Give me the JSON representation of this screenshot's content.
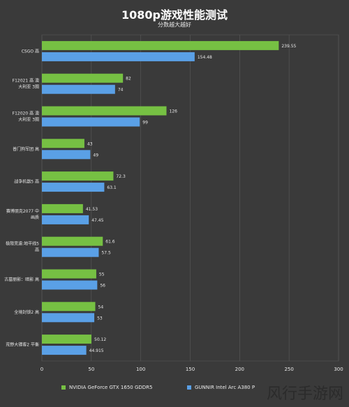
{
  "header": {
    "title": "1080p游戏性能测试",
    "subtitle": "分数越大越好"
  },
  "colors": {
    "background": "#3a3a3a",
    "nvidia": "#76c043",
    "gunnir": "#5aa0e6",
    "grid": "#5a5a5a",
    "text": "#e8e8e8"
  },
  "legend": {
    "nvidia_label": "NVIDIA GeForce GTX 1650  GDDR5",
    "gunnir_label": "GUNNIR Intel Arc A380 P"
  },
  "watermark": {
    "text": "风行手游网"
  },
  "chart_data": {
    "type": "bar",
    "orientation": "horizontal",
    "title": "1080p游戏性能测试",
    "subtitle": "分数越大越好",
    "categories": [
      "CSGO 高",
      "F12021 高 澳大利亚 3圈",
      "F12020 高 澳大利亚 3圈",
      "普门狗军团 高",
      "战争机器5 高",
      "赛博朋克2077 中画质",
      "极限竞速:地平线5 高",
      "古墓丽影：暗影 高",
      "全境封锁2 高",
      "荒野大镖客2 平衡"
    ],
    "series": [
      {
        "name": "NVIDIA GeForce GTX 1650  GDDR5",
        "color": "#76c043",
        "values": [
          239.55,
          82,
          126,
          43,
          72.3,
          41.53,
          61.6,
          55,
          54,
          50.12
        ],
        "labels": [
          "239.55",
          "82",
          "126",
          "43",
          "72.3",
          "41.53",
          "61.6",
          "55",
          "54",
          "50.12"
        ]
      },
      {
        "name": "GUNNIR Intel Arc A380 P",
        "color": "#5aa0e6",
        "values": [
          154.48,
          74,
          99,
          49,
          63.1,
          47.45,
          57.5,
          56,
          53,
          44.915
        ],
        "labels": [
          "154.48",
          "74",
          "99",
          "49",
          "63.1",
          "47.45",
          "57.5",
          "56",
          "53",
          "44.915"
        ]
      }
    ],
    "xlim": [
      0,
      300
    ],
    "xticks": [
      "0",
      "50",
      "100",
      "150",
      "200",
      "250",
      "300"
    ],
    "grid": true,
    "legend_position": "bottom"
  }
}
